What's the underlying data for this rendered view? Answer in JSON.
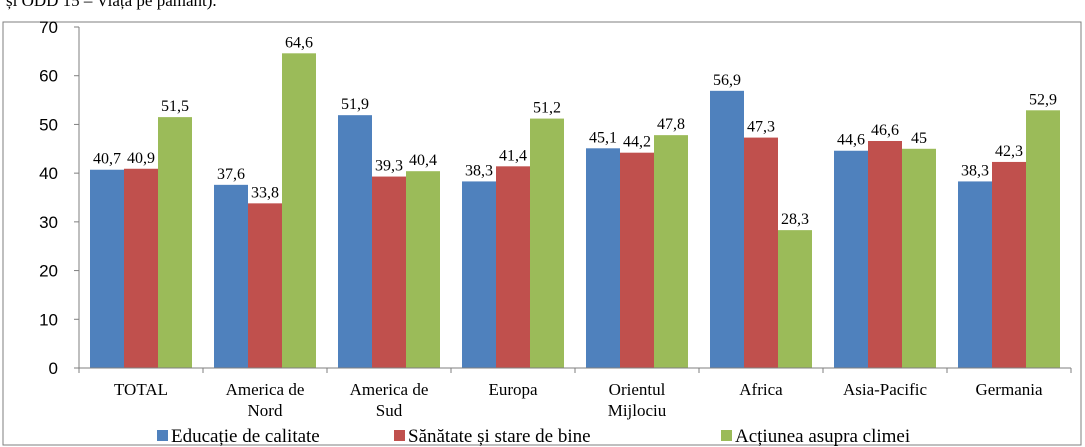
{
  "caption": "și ODD 15 – Viața pe pământ).",
  "chart_data": {
    "type": "bar",
    "categories": [
      [
        "TOTAL"
      ],
      [
        "America de",
        "Nord"
      ],
      [
        "America de",
        "Sud"
      ],
      [
        "Europa"
      ],
      [
        "Orientul",
        "Mijlociu"
      ],
      [
        "Africa"
      ],
      [
        "Asia-Pacific"
      ],
      [
        "Germania"
      ]
    ],
    "series": [
      {
        "name": "Educație de calitate",
        "color": "#4F81BD",
        "values": [
          40.7,
          37.6,
          51.9,
          38.3,
          45.1,
          56.9,
          44.6,
          38.3
        ],
        "labels": [
          "40,7",
          "37,6",
          "51,9",
          "38,3",
          "45,1",
          "56,9",
          "44,6",
          "38,3"
        ]
      },
      {
        "name": "Sănătate și stare de bine",
        "color": "#C0504D",
        "values": [
          40.9,
          33.8,
          39.3,
          41.4,
          44.2,
          47.3,
          46.6,
          42.3
        ],
        "labels": [
          "40,9",
          "33,8",
          "39,3",
          "41,4",
          "44,2",
          "47,3",
          "46,6",
          "42,3"
        ]
      },
      {
        "name": "Acțiunea asupra climei",
        "color": "#9BBB59",
        "values": [
          51.5,
          64.6,
          40.4,
          51.2,
          47.8,
          28.3,
          45,
          52.9
        ],
        "labels": [
          "51,5",
          "64,6",
          "40,4",
          "51,2",
          "47,8",
          "28,3",
          "45",
          "52,9"
        ]
      }
    ],
    "ylim": [
      0,
      70
    ],
    "yticks": [
      "0",
      "10",
      "20",
      "30",
      "40",
      "50",
      "60",
      "70"
    ],
    "grid": false,
    "legend": "bottom",
    "title": "",
    "xlabel": "",
    "ylabel": ""
  }
}
